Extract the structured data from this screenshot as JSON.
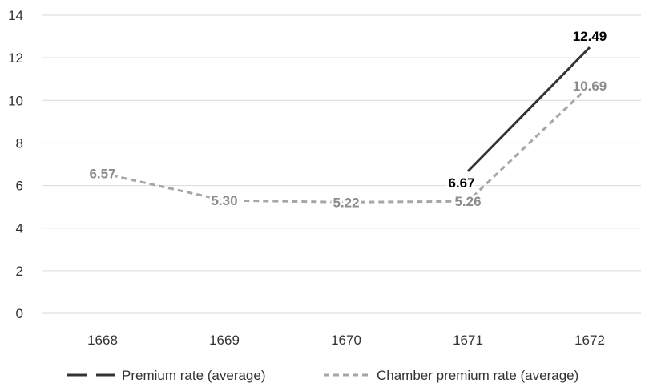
{
  "chart_data": {
    "type": "line",
    "title": "",
    "xlabel": "",
    "ylabel": "",
    "categories": [
      "1668",
      "1669",
      "1670",
      "1671",
      "1672"
    ],
    "ylim": [
      0,
      14
    ],
    "yticks": [
      0,
      2,
      4,
      6,
      8,
      10,
      12,
      14
    ],
    "grid": true,
    "legend_position": "bottom",
    "series": [
      {
        "name": "Premium rate (average)",
        "values": [
          null,
          null,
          null,
          6.67,
          12.49
        ],
        "labels": [
          "",
          "",
          "",
          "6.67",
          "12.49"
        ],
        "color": "#333333",
        "label_color": "#000000",
        "style": "long-dash"
      },
      {
        "name": "Chamber premium rate (average)",
        "values": [
          6.57,
          5.3,
          5.22,
          5.26,
          10.69
        ],
        "labels": [
          "6.57",
          "5.30",
          "5.22",
          "5.26",
          "10.69"
        ],
        "color": "#a6a6a6",
        "label_color": "#8c8c8c",
        "style": "dash"
      }
    ]
  }
}
